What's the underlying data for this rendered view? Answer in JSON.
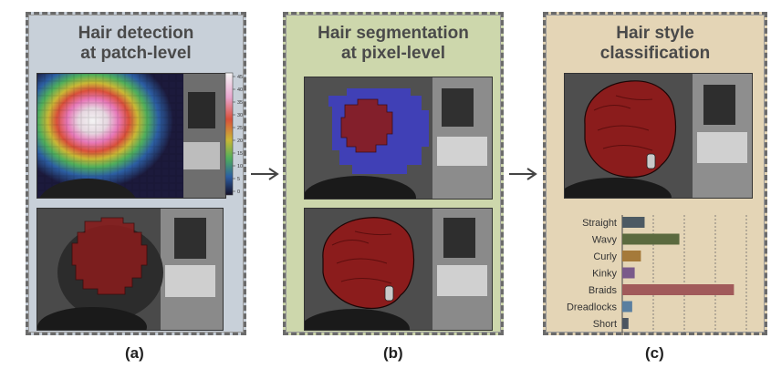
{
  "panels": {
    "a": {
      "title_line1": "Hair detection",
      "title_line2": "at patch-level",
      "caption": "(a)"
    },
    "b": {
      "title_line1": "Hair segmentation",
      "title_line2": "at pixel-level",
      "caption": "(b)"
    },
    "c": {
      "title_line1": "Hair style",
      "title_line2": "classification",
      "caption": "(c)"
    }
  },
  "colorbar": {
    "ticks": [
      "45",
      "40",
      "35",
      "30",
      "25",
      "20",
      "15",
      "10",
      "5",
      "0"
    ]
  },
  "colors": {
    "hair_overlay": "#8b1c1c",
    "segmentation_blue": "#3b3bd8",
    "arrow": "#444444"
  },
  "chart_data": {
    "type": "bar",
    "orientation": "horizontal",
    "categories": [
      "Straight",
      "Wavy",
      "Curly",
      "Kinky",
      "Braids",
      "Dreadlocks",
      "Short"
    ],
    "values": [
      0.18,
      0.46,
      0.15,
      0.1,
      0.9,
      0.08,
      0.05
    ],
    "colors": [
      "#4d5a63",
      "#5b6a3f",
      "#a57a3a",
      "#7a5a8a",
      "#a15a5a",
      "#5a7fa0",
      "#4d5660"
    ],
    "xlim": [
      0,
      1
    ],
    "grid": true
  }
}
